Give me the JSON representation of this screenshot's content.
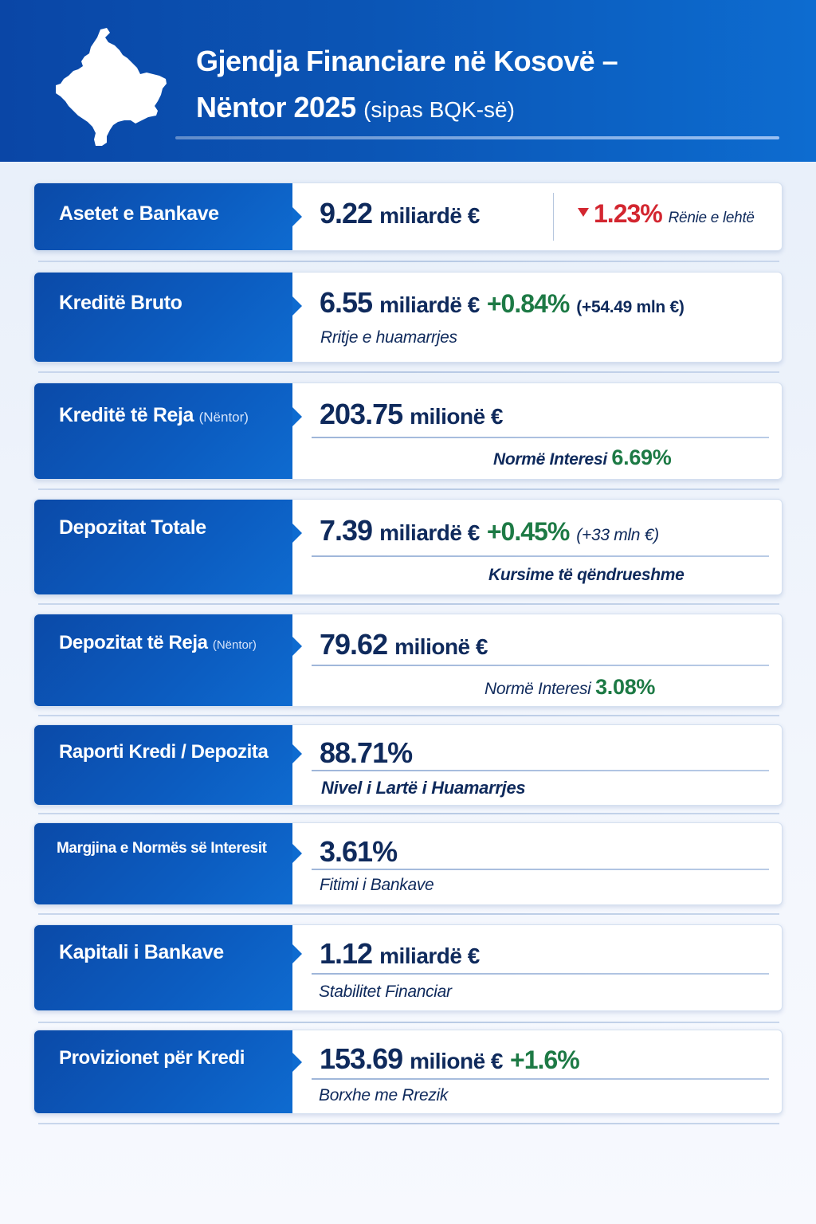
{
  "header": {
    "title_line1": "Gjendja Financiare në Kosovë –",
    "title_line2": "Nëntor 2025",
    "title_sub": "(sipas BQK-së)",
    "map_icon": "kosovo-map-icon"
  },
  "colors": {
    "primary_blue": "#0b4aa8",
    "value_navy": "#0f2a5c",
    "positive_green": "#1d7a45",
    "negative_red": "#d32630"
  },
  "cards": [
    {
      "label": "Asetet e Bankave",
      "value": "9.22",
      "unit": "miliardë €",
      "change": "1.23%",
      "change_icon": "triangle-down-icon",
      "change_note": "Rënie e lehtë"
    },
    {
      "label": "Kreditë Bruto",
      "value": "6.55",
      "unit": "miliardë €",
      "change": "+0.84%",
      "change_detail": "(+54.49 mln €)",
      "note": "Rritje e huamarrjes"
    },
    {
      "label": "Kreditë të Reja",
      "label_small": "(Nëntor)",
      "value": "203.75",
      "unit": "milionë €",
      "note": "Normë Interesi",
      "note_value": "6.69%"
    },
    {
      "label": "Depozitat Totale",
      "value": "7.39",
      "unit": "miliardë €",
      "change": "+0.45%",
      "change_detail": "(+33 mln €)",
      "note": "Kursime të qëndrueshme"
    },
    {
      "label": "Depozitat të Reja",
      "label_small": "(Nëntor)",
      "value": "79.62",
      "unit": "milionë €",
      "note": "Normë Interesi",
      "note_value": "3.08%"
    },
    {
      "label": "Raporti Kredi / Depozita",
      "value": "88.71%",
      "note": "Nivel i Lartë i Huamarrjes"
    },
    {
      "label": "Margjina e Normës së Interesit",
      "value": "3.61%",
      "note": "Fitimi i Bankave"
    },
    {
      "label": "Kapitali i Bankave",
      "value": "1.12",
      "unit": "miliardë €",
      "note": "Stabilitet Financiar"
    },
    {
      "label": "Provizionet për Kredi",
      "value": "153.69",
      "unit": "milionë €",
      "change": "+1.6%",
      "note": "Borxhe me Rrezik"
    }
  ]
}
